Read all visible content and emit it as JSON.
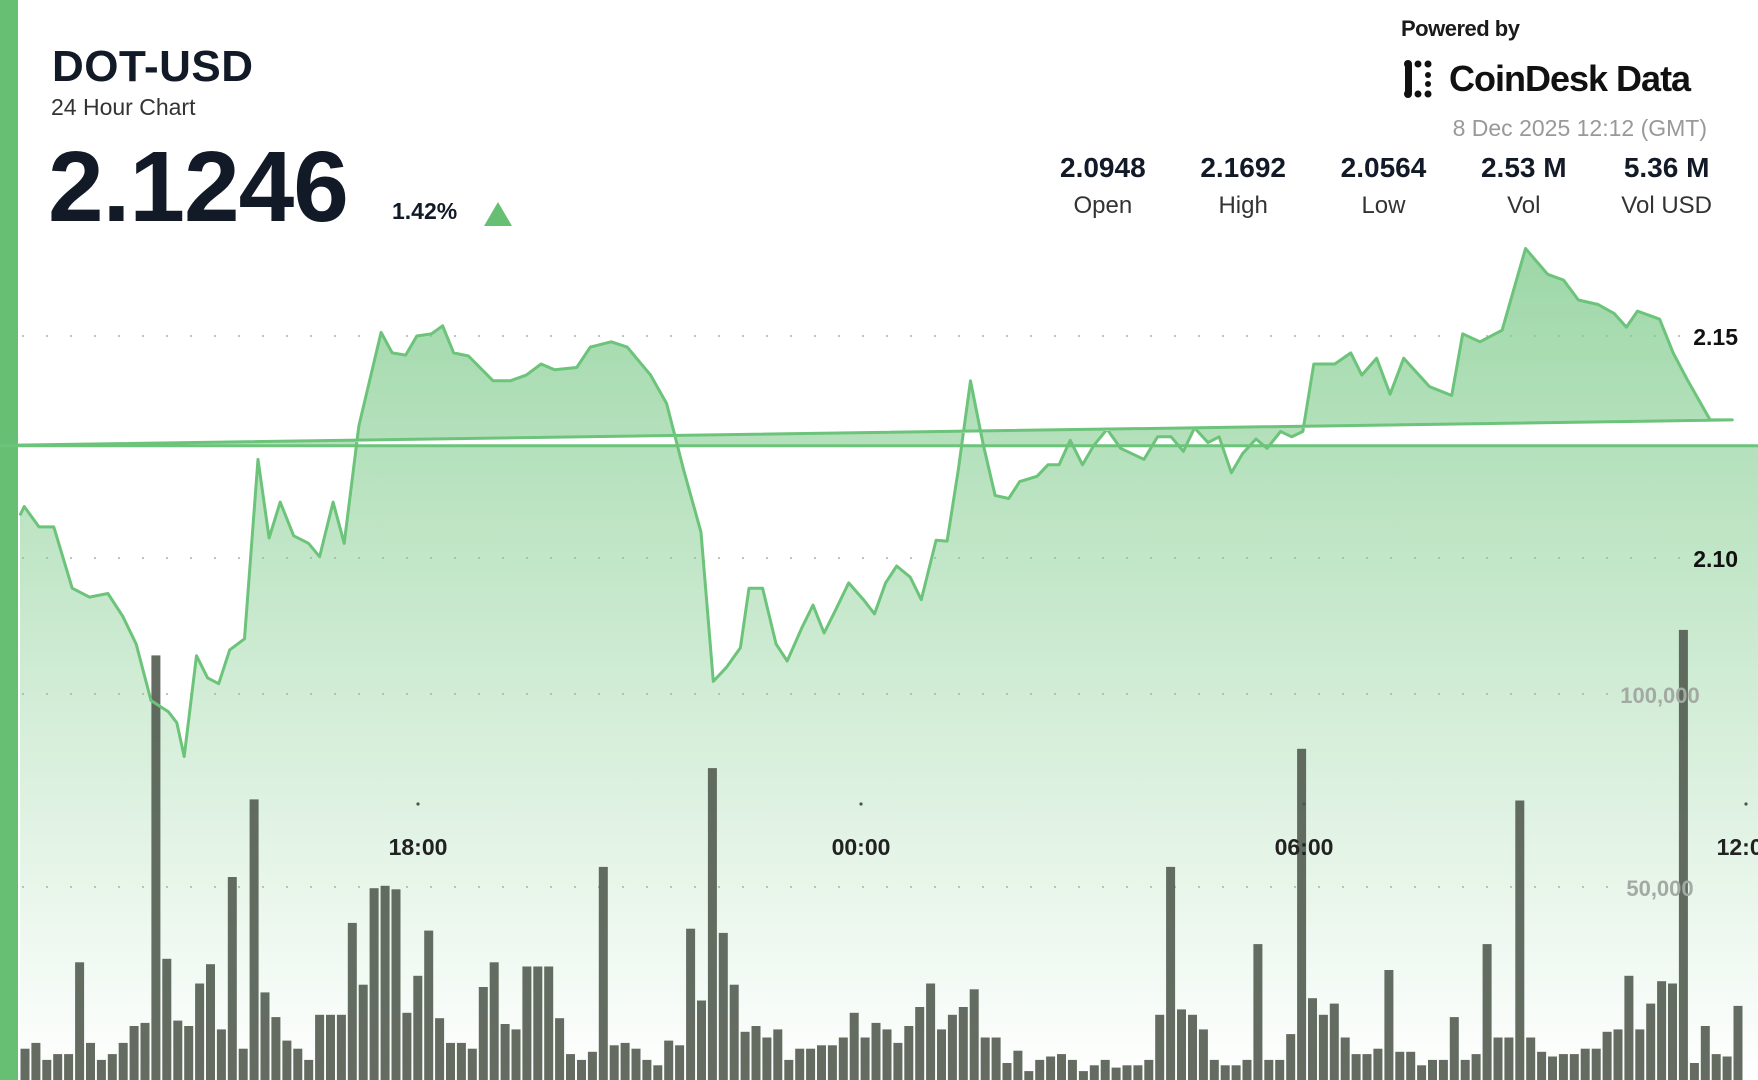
{
  "header": {
    "symbol": "DOT-USD",
    "subtitle": "24 Hour Chart",
    "price": "2.1246",
    "change_pct": "1.42%",
    "change_direction": "up",
    "powered_by": "Powered by",
    "brand": "CoinDesk Data",
    "timestamp": "8 Dec 2025 12:12 (GMT)",
    "stats": [
      {
        "value": "2.0948",
        "label": "Open"
      },
      {
        "value": "2.1692",
        "label": "High"
      },
      {
        "value": "2.0564",
        "label": "Low"
      },
      {
        "value": "2.53 M",
        "label": "Vol"
      },
      {
        "value": "5.36 M",
        "label": "Vol USD"
      }
    ]
  },
  "colors": {
    "accent": "#66bf73",
    "line": "#6cc37a",
    "fill": "#7dca8a",
    "volume": "#4f584c",
    "text": "#111a26",
    "muted": "#999999"
  },
  "chart_data": {
    "type": "line",
    "x_ticks": [
      "18:00",
      "00:00",
      "06:00",
      "12:00"
    ],
    "price_ticks": [
      "2.15",
      "2.10"
    ],
    "volume_ticks": [
      "100,000",
      "50,000"
    ],
    "grid": "horizontal dotted",
    "price": [
      [
        "12:36",
        2.1096
      ],
      [
        "12:40",
        2.1116
      ],
      [
        "12:52",
        2.107
      ],
      [
        "13:04",
        2.107
      ],
      [
        "13:19",
        2.0932
      ],
      [
        "13:33",
        2.0912
      ],
      [
        "13:48",
        2.092
      ],
      [
        "14:00",
        2.0869
      ],
      [
        "14:11",
        2.0806
      ],
      [
        "14:23",
        2.0679
      ],
      [
        "14:37",
        2.0654
      ],
      [
        "14:44",
        2.0629
      ],
      [
        "14:50",
        2.0553
      ],
      [
        "15:00",
        2.078
      ],
      [
        "15:09",
        2.073
      ],
      [
        "15:18",
        2.0717
      ],
      [
        "15:27",
        2.0793
      ],
      [
        "15:39",
        2.0818
      ],
      [
        "15:50",
        2.1222
      ],
      [
        "15:59",
        2.1045
      ],
      [
        "16:08",
        2.1126
      ],
      [
        "16:19",
        2.105
      ],
      [
        "16:31",
        2.1033
      ],
      [
        "16:40",
        2.1003
      ],
      [
        "16:51",
        2.1126
      ],
      [
        "17:00",
        2.1033
      ],
      [
        "17:12",
        2.1298
      ],
      [
        "17:30",
        2.1508
      ],
      [
        "17:39",
        2.1462
      ],
      [
        "17:50",
        2.1457
      ],
      [
        "17:59",
        2.15
      ],
      [
        "18:11",
        2.1505
      ],
      [
        "18:20",
        2.1523
      ],
      [
        "18:29",
        2.1462
      ],
      [
        "18:41",
        2.1455
      ],
      [
        "19:01",
        2.1399
      ],
      [
        "19:15",
        2.1399
      ],
      [
        "19:28",
        2.1412
      ],
      [
        "19:40",
        2.1437
      ],
      [
        "19:51",
        2.1424
      ],
      [
        "20:09",
        2.1429
      ],
      [
        "20:20",
        2.1475
      ],
      [
        "20:37",
        2.1487
      ],
      [
        "20:50",
        2.1475
      ],
      [
        "21:09",
        2.1412
      ],
      [
        "21:22",
        2.1348
      ],
      [
        "21:36",
        2.1197
      ],
      [
        "21:50",
        2.1058
      ],
      [
        "22:00",
        2.0722
      ],
      [
        "22:11",
        2.0755
      ],
      [
        "22:22",
        2.0798
      ],
      [
        "22:29",
        2.0932
      ],
      [
        "22:40",
        2.0932
      ],
      [
        "22:51",
        2.0806
      ],
      [
        "23:00",
        2.0768
      ],
      [
        "23:12",
        2.0843
      ],
      [
        "23:21",
        2.0894
      ],
      [
        "23:30",
        2.0831
      ],
      [
        "23:39",
        2.0881
      ],
      [
        "23:50",
        2.0944
      ],
      [
        "00:02",
        2.0906
      ],
      [
        "00:11",
        2.0874
      ],
      [
        "00:20",
        2.0944
      ],
      [
        "00:29",
        2.0982
      ],
      [
        "00:40",
        2.0957
      ],
      [
        "00:49",
        2.0906
      ],
      [
        "01:01",
        2.104
      ],
      [
        "01:10",
        2.1038
      ],
      [
        "01:19",
        2.1197
      ],
      [
        "01:29",
        2.1399
      ],
      [
        "01:39",
        2.126
      ],
      [
        "01:49",
        2.1141
      ],
      [
        "02:00",
        2.1134
      ],
      [
        "02:09",
        2.1172
      ],
      [
        "02:23",
        2.1184
      ],
      [
        "02:32",
        2.121
      ],
      [
        "02:41",
        2.121
      ],
      [
        "02:50",
        2.1265
      ],
      [
        "03:00",
        2.121
      ],
      [
        "03:09",
        2.1253
      ],
      [
        "03:20",
        2.129
      ],
      [
        "03:31",
        2.1247
      ],
      [
        "03:50",
        2.1222
      ],
      [
        "04:01",
        2.1273
      ],
      [
        "04:12",
        2.1273
      ],
      [
        "04:22",
        2.124
      ],
      [
        "04:31",
        2.1293
      ],
      [
        "04:42",
        2.126
      ],
      [
        "04:51",
        2.1273
      ],
      [
        "05:01",
        2.1192
      ],
      [
        "05:10",
        2.1235
      ],
      [
        "05:21",
        2.1268
      ],
      [
        "05:30",
        2.1247
      ],
      [
        "05:41",
        2.1285
      ],
      [
        "05:50",
        2.1273
      ],
      [
        "05:59",
        2.1285
      ],
      [
        "06:08",
        2.1437
      ],
      [
        "06:25",
        2.1437
      ],
      [
        "06:38",
        2.1462
      ],
      [
        "06:47",
        2.1412
      ],
      [
        "06:59",
        2.145
      ],
      [
        "07:10",
        2.1369
      ],
      [
        "07:21",
        2.145
      ],
      [
        "07:42",
        2.1386
      ],
      [
        "08:00",
        2.1366
      ],
      [
        "08:09",
        2.1505
      ],
      [
        "08:23",
        2.1487
      ],
      [
        "08:41",
        2.1513
      ],
      [
        "09:00",
        2.1697
      ],
      [
        "09:18",
        2.1639
      ],
      [
        "09:31",
        2.1626
      ],
      [
        "09:43",
        2.1581
      ],
      [
        "09:59",
        2.1571
      ],
      [
        "10:12",
        2.1551
      ],
      [
        "10:22",
        2.152
      ],
      [
        "10:31",
        2.1556
      ],
      [
        "10:49",
        2.1538
      ],
      [
        "11:00",
        2.1462
      ],
      [
        "11:12",
        2.1399
      ],
      [
        "11:30",
        2.1311
      ],
      [
        "11:48",
        2.1311
      ],
      [
        "12:02",
        2.1253
      ],
      [
        "12:09",
        2.1253
      ]
    ],
    "volume": [
      8100,
      9600,
      5200,
      6700,
      6700,
      30500,
      9600,
      5200,
      6700,
      9600,
      14000,
      14800,
      110000,
      31400,
      15400,
      14000,
      25000,
      30000,
      13100,
      52600,
      8100,
      72700,
      22700,
      16300,
      10200,
      8100,
      5200,
      16900,
      16900,
      16900,
      40700,
      24700,
      49700,
      50300,
      49400,
      17400,
      27000,
      38700,
      16000,
      9600,
      9600,
      8100,
      24100,
      30500,
      14500,
      13100,
      29400,
      29400,
      29400,
      16000,
      6700,
      5200,
      7300,
      55200,
      9000,
      9600,
      8100,
      5200,
      3800,
      10200,
      9000,
      39200,
      20600,
      80800,
      38100,
      24700,
      12500,
      14000,
      11000,
      13100,
      5200,
      8100,
      8100,
      9000,
      9000,
      11000,
      17400,
      11000,
      14800,
      13100,
      9600,
      14000,
      18900,
      25000,
      13100,
      16900,
      18900,
      23500,
      11000,
      11000,
      4400,
      7600,
      2300,
      5200,
      6100,
      6700,
      5200,
      2300,
      3800,
      5200,
      3200,
      3800,
      3800,
      5200,
      16900,
      55200,
      18300,
      16900,
      13100,
      5200,
      3800,
      3800,
      5200,
      35200,
      5200,
      5200,
      11900,
      85800,
      21200,
      16900,
      19800,
      11000,
      6700,
      6700,
      8100,
      28500,
      7300,
      7300,
      3800,
      5200,
      5200,
      16300,
      5200,
      6700,
      35200,
      11000,
      11000,
      72400,
      11000,
      7300,
      6100,
      6700,
      6700,
      8100,
      8100,
      12500,
      13100,
      27000,
      13100,
      19800,
      25600,
      25000,
      116600,
      4400,
      14000,
      6700,
      6100,
      19200
    ]
  }
}
